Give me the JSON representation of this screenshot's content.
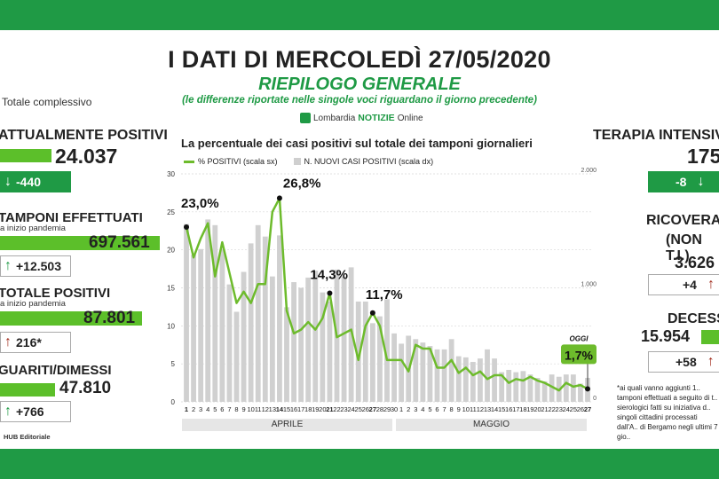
{
  "header": {
    "title": "I DATI DI MERCOLEDÌ 27/05/2020",
    "subtitle": "RIEPILOGO GENERALE",
    "note": "(le differenze riportate nelle singole voci riguardano il giorno precedente)",
    "logo_text": "Lombardia",
    "logo_brand": "NOTIZIE",
    "logo_suffix": "Online"
  },
  "left_panel": {
    "section_label": "Totale complessivo",
    "attualmente_positivi": {
      "label": "ATTUALMENTE POSITIVI",
      "value": "24.037",
      "delta": "-440"
    },
    "tamponi": {
      "label": "TAMPONI EFFETTUATI",
      "sub": "a inizio pandemia",
      "value": "697.561",
      "delta": "+12.503"
    },
    "totale_positivi": {
      "label": "TOTALE POSITIVI",
      "sub": "a inizio pandemia",
      "value": "87.801",
      "delta": "216*"
    },
    "guariti": {
      "label": "GUARITI/DIMESSI",
      "value": "47.810",
      "delta": "+766"
    },
    "hub": "HUB Editoriale"
  },
  "right_panel": {
    "terapia": {
      "label": "TERAPIA INTENSIVA",
      "value": "175",
      "delta": "-8"
    },
    "ricoverati": {
      "label": "RICOVERATI",
      "sub": "(NON T.I.)",
      "value": "3.626",
      "delta": "+4"
    },
    "decessi": {
      "label": "DECESSI",
      "value": "15.954",
      "delta": "+58"
    },
    "footnote": "*ai quali vanno aggiunti 1.. tamponi effettuati a seguito di t.. sierologici fatti su iniziativa d.. singoli cittadini processati dall'A.. di Bergamo negli ultimi 7 gio.."
  },
  "colors": {
    "green": "#1f9a45",
    "line": "#6dbb2c",
    "bar": "#d0d0d0",
    "red_arrow": "#a12b1c"
  },
  "chart_data": {
    "type": "line",
    "title": "La percentuale dei casi positivi sul totale dei tamponi giornalieri",
    "legend": [
      "% POSITIVI (scala sx)",
      "N. NUOVI CASI POSITIVI (scala dx)"
    ],
    "x_labels": [
      "1",
      "2",
      "3",
      "4",
      "5",
      "6",
      "7",
      "8",
      "9",
      "10",
      "11",
      "12",
      "13",
      "14",
      "15",
      "16",
      "17",
      "18",
      "19",
      "20",
      "21",
      "22",
      "23",
      "24",
      "25",
      "26",
      "27",
      "28",
      "29",
      "30",
      "1",
      "2",
      "3",
      "4",
      "5",
      "6",
      "7",
      "8",
      "9",
      "10",
      "11",
      "12",
      "13",
      "14",
      "15",
      "16",
      "17",
      "18",
      "19",
      "20",
      "21",
      "22",
      "23",
      "24",
      "25",
      "26",
      "27"
    ],
    "bold_labels": [
      "1",
      "14",
      "21",
      "27",
      "27"
    ],
    "months": [
      "APRILE",
      "MAGGIO"
    ],
    "y_left_ticks": [
      0,
      5,
      10,
      15,
      20,
      25,
      30
    ],
    "ylim_left": [
      0,
      30
    ],
    "y_right_ticks": [
      "0",
      "1.000",
      "2.000"
    ],
    "ylim_right": [
      0,
      2000
    ],
    "series": [
      {
        "name": "% POSITIVI (scala sx)",
        "values": [
          23.0,
          19.0,
          21.5,
          23.5,
          16.5,
          21.0,
          17.0,
          13.0,
          14.5,
          13.0,
          15.5,
          15.5,
          25.0,
          26.8,
          12.0,
          9.0,
          9.5,
          10.5,
          9.5,
          11.0,
          14.3,
          8.5,
          9.0,
          9.5,
          5.5,
          10.0,
          11.7,
          10.0,
          5.5,
          5.5,
          5.5,
          4.0,
          7.5,
          7.0,
          7.0,
          4.5,
          4.5,
          5.5,
          3.8,
          4.5,
          3.5,
          4.0,
          3.0,
          3.5,
          3.5,
          2.5,
          3.0,
          2.8,
          3.3,
          2.8,
          2.5,
          2.0,
          1.5,
          2.5,
          2.0,
          2.2,
          1.7
        ]
      },
      {
        "name": "N. NUOVI CASI POSITIVI (scala dx)",
        "values": [
          1560,
          1290,
          1340,
          1600,
          1550,
          1340,
          1030,
          790,
          1140,
          1390,
          1550,
          1450,
          1100,
          1460,
          830,
          1050,
          1000,
          1090,
          1150,
          960,
          880,
          1160,
          1100,
          1180,
          880,
          880,
          690,
          750,
          900,
          600,
          510,
          580,
          550,
          520,
          490,
          460,
          460,
          550,
          400,
          390,
          350,
          380,
          460,
          380,
          260,
          280,
          260,
          270,
          240,
          210,
          180,
          240,
          220,
          240,
          240,
          160,
          210
        ]
      }
    ],
    "annotations": [
      {
        "label": "23,0%",
        "x": "1",
        "y": 23.0
      },
      {
        "label": "26,8%",
        "x": "14",
        "y": 26.8
      },
      {
        "label": "14,3%",
        "x": "21",
        "y": 14.3
      },
      {
        "label": "11,7%",
        "x": "27",
        "y": 11.7
      },
      {
        "label": "1,7%",
        "x": "27",
        "y": 1.7
      }
    ],
    "today_label": "OGGI"
  }
}
